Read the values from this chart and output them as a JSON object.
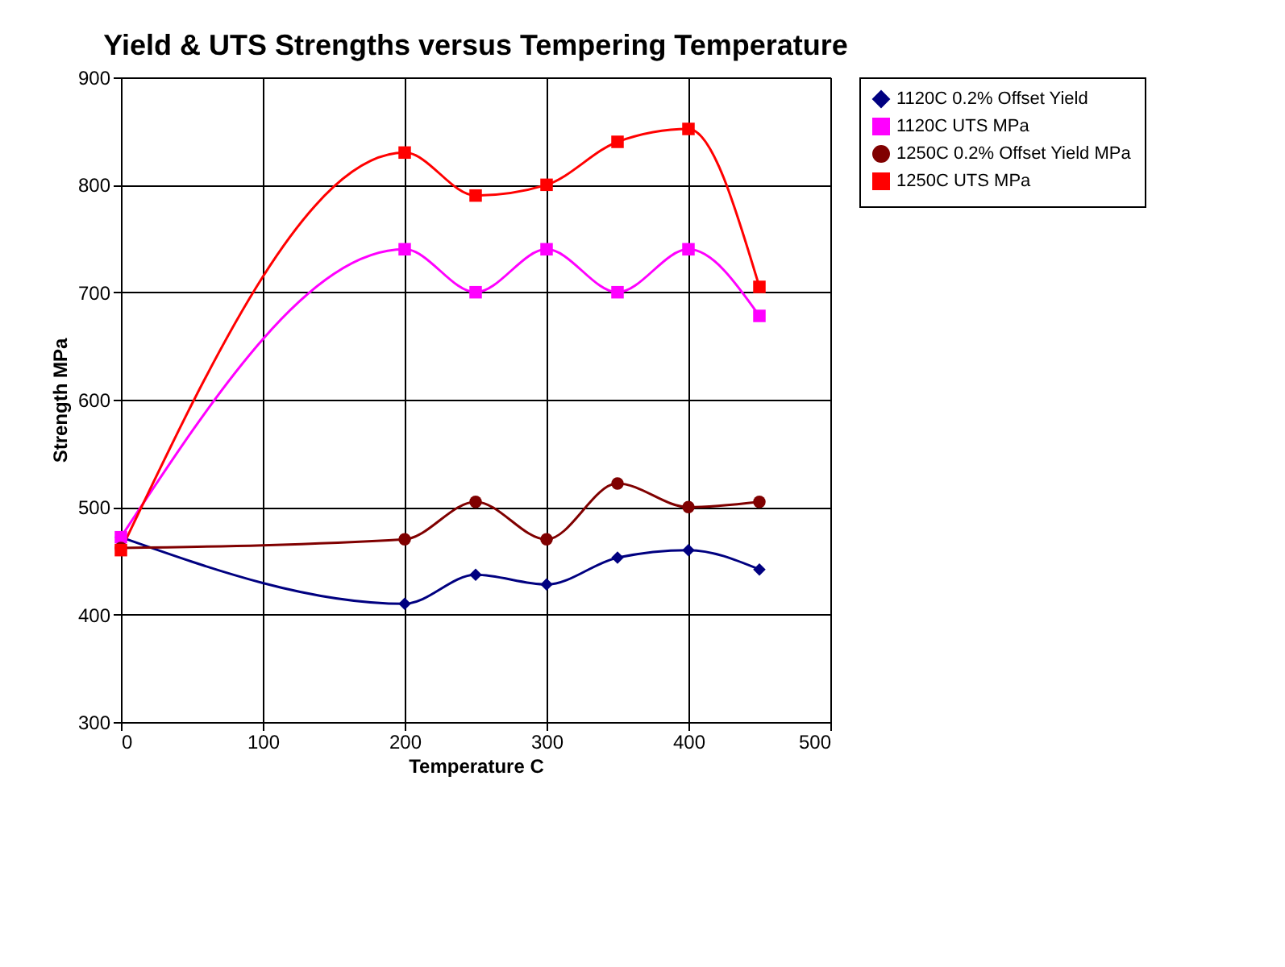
{
  "chart_data": {
    "type": "line",
    "title": "Yield & UTS Strengths versus Tempering Temperature",
    "xlabel": "Temperature C",
    "ylabel": "Strength MPa",
    "x": [
      0,
      200,
      250,
      300,
      350,
      400,
      450
    ],
    "series": [
      {
        "name": "1120C 0.2% Offset Yield",
        "color": "#000080",
        "marker": "diamond",
        "values": [
          472,
          410,
          437,
          428,
          453,
          460,
          442
        ]
      },
      {
        "name": "1120C UTS MPa",
        "color": "#ff00ff",
        "marker": "square",
        "values": [
          472,
          740,
          700,
          740,
          700,
          740,
          678
        ]
      },
      {
        "name": "1250C 0.2% Offset Yield MPa",
        "color": "#800000",
        "marker": "circle",
        "values": [
          462,
          470,
          505,
          470,
          522,
          500,
          505
        ]
      },
      {
        "name": "1250C UTS MPa",
        "color": "#ff0000",
        "marker": "square",
        "values": [
          460,
          830,
          790,
          800,
          840,
          852,
          705
        ]
      }
    ],
    "xlim": [
      0,
      500
    ],
    "xticks": [
      0,
      100,
      200,
      300,
      400,
      500
    ],
    "ylim": [
      300,
      900
    ],
    "yticks": [
      300,
      400,
      500,
      600,
      700,
      800,
      900
    ],
    "grid": true,
    "legend": "right",
    "line_style": "solid"
  }
}
